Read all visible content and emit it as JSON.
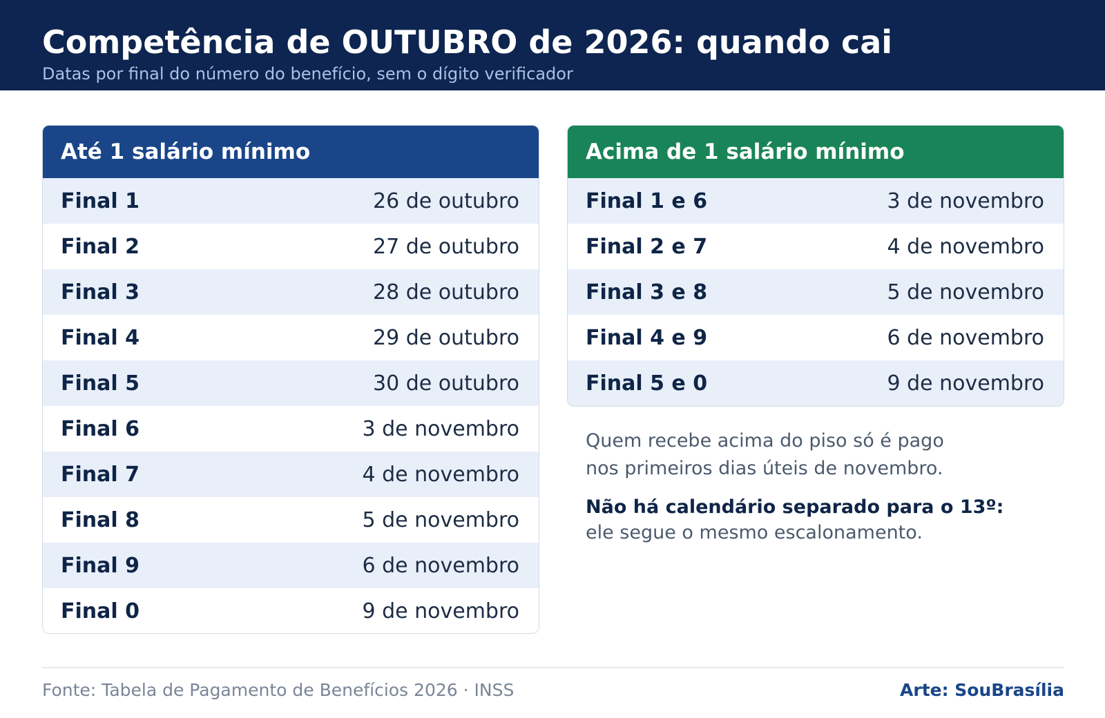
{
  "header": {
    "title": "Competência de OUTUBRO de 2026: quando cai",
    "subtitle": "Datas por final do número do benefício, sem o dígito verificador"
  },
  "left_table": {
    "title": "Até 1 salário mínimo",
    "rows": [
      {
        "label": "Final 1",
        "date": "26 de outubro"
      },
      {
        "label": "Final 2",
        "date": "27 de outubro"
      },
      {
        "label": "Final 3",
        "date": "28 de outubro"
      },
      {
        "label": "Final 4",
        "date": "29 de outubro"
      },
      {
        "label": "Final 5",
        "date": "30 de outubro"
      },
      {
        "label": "Final 6",
        "date": "3 de novembro"
      },
      {
        "label": "Final 7",
        "date": "4 de novembro"
      },
      {
        "label": "Final 8",
        "date": "5 de novembro"
      },
      {
        "label": "Final 9",
        "date": "6 de novembro"
      },
      {
        "label": "Final 0",
        "date": "9 de novembro"
      }
    ]
  },
  "right_table": {
    "title": "Acima de 1 salário mínimo",
    "rows": [
      {
        "label": "Final 1 e 6",
        "date": "3 de novembro"
      },
      {
        "label": "Final 2 e 7",
        "date": "4 de novembro"
      },
      {
        "label": "Final 3 e 8",
        "date": "5 de novembro"
      },
      {
        "label": "Final 4 e 9",
        "date": "6 de novembro"
      },
      {
        "label": "Final 5 e 0",
        "date": "9 de novembro"
      }
    ]
  },
  "notes": {
    "note1_line1": "Quem recebe acima do piso só é pago",
    "note1_line2": "nos primeiros dias úteis de novembro.",
    "note2_strong": "Não há calendário separado para o 13º:",
    "note2_text": "ele segue o mesmo escalonamento."
  },
  "footer": {
    "source": "Fonte: Tabela de Pagamento de Benefícios 2026 · INSS",
    "credit": "Arte: SouBrasília"
  },
  "colors": {
    "header_bg": "#0d2550",
    "left_head_bg": "#1a4689",
    "right_head_bg": "#198457",
    "row_alt_bg": "#e8eff9"
  }
}
